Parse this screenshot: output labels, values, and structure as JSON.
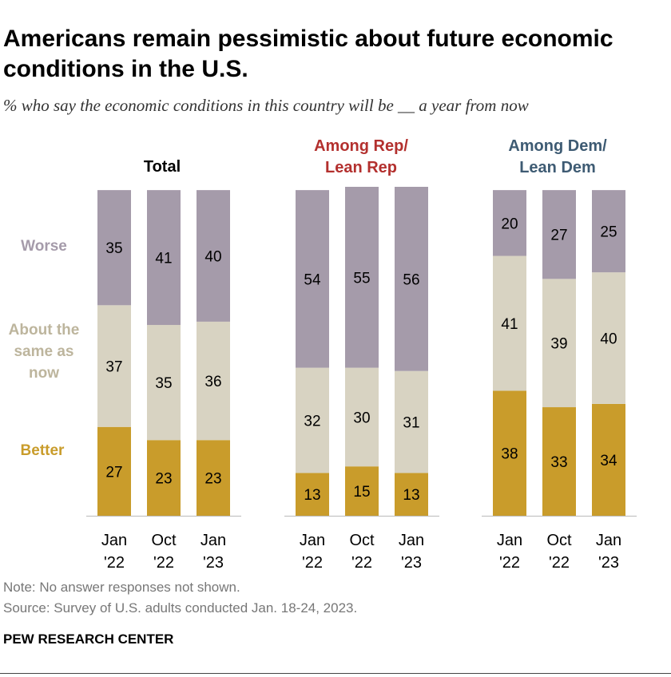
{
  "title": "Americans remain pessimistic about future economic conditions in the U.S.",
  "subtitle": "% who say the economic conditions in this country will be __ a year from now",
  "labels": {
    "worse": "Worse",
    "same_line1": "About the",
    "same_line2": "same as",
    "same_line3": "now",
    "better": "Better"
  },
  "colors": {
    "worse": "#A59BAA",
    "same": "#D8D3C2",
    "better": "#C99C2B",
    "worse_label": "#A59BAA",
    "same_label": "#BDB59D",
    "better_label": "#C99C2B",
    "rep": "#B3302E",
    "dem": "#3E5B73"
  },
  "chart_data": {
    "type": "bar",
    "stacked": true,
    "groups": [
      {
        "name_line1": "Total",
        "name_line2": "",
        "categories": [
          {
            "line1": "Jan",
            "line2": "'22"
          },
          {
            "line1": "Oct",
            "line2": "'22"
          },
          {
            "line1": "Jan",
            "line2": "'23"
          }
        ],
        "series": [
          {
            "name": "Better",
            "values": [
              27,
              23,
              23
            ]
          },
          {
            "name": "About the same as now",
            "values": [
              37,
              35,
              36
            ]
          },
          {
            "name": "Worse",
            "values": [
              35,
              41,
              40
            ]
          }
        ]
      },
      {
        "name_line1": "Among Rep/",
        "name_line2": "Lean Rep",
        "categories": [
          {
            "line1": "Jan",
            "line2": "'22"
          },
          {
            "line1": "Oct",
            "line2": "'22"
          },
          {
            "line1": "Jan",
            "line2": "'23"
          }
        ],
        "series": [
          {
            "name": "Better",
            "values": [
              13,
              15,
              13
            ]
          },
          {
            "name": "About the same as now",
            "values": [
              32,
              30,
              31
            ]
          },
          {
            "name": "Worse",
            "values": [
              54,
              55,
              56
            ]
          }
        ]
      },
      {
        "name_line1": "Among Dem/",
        "name_line2": "Lean Dem",
        "categories": [
          {
            "line1": "Jan",
            "line2": "'22"
          },
          {
            "line1": "Oct",
            "line2": "'22"
          },
          {
            "line1": "Jan",
            "line2": "'23"
          }
        ],
        "series": [
          {
            "name": "Better",
            "values": [
              38,
              33,
              34
            ]
          },
          {
            "name": "About the same as now",
            "values": [
              41,
              39,
              40
            ]
          },
          {
            "name": "Worse",
            "values": [
              20,
              27,
              25
            ]
          }
        ]
      }
    ]
  },
  "note": "Note: No answer responses not shown.",
  "source": "Source: Survey of U.S. adults conducted Jan. 18-24, 2023.",
  "brand": "PEW RESEARCH CENTER"
}
